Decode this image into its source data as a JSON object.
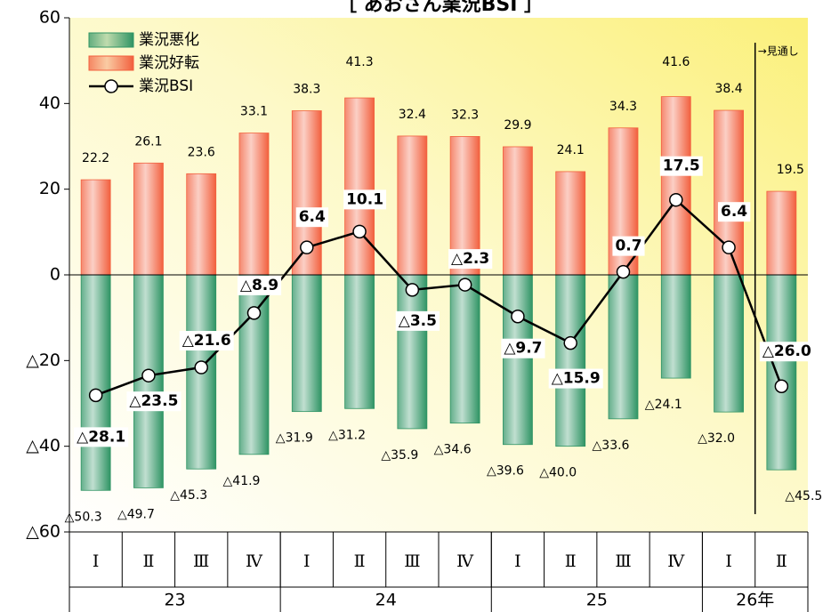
{
  "chart_data": {
    "type": "bar",
    "title": "［ あおさん業況BSI ］",
    "categories": [
      "Ⅰ",
      "Ⅱ",
      "Ⅲ",
      "Ⅳ",
      "Ⅰ",
      "Ⅱ",
      "Ⅲ",
      "Ⅳ",
      "Ⅰ",
      "Ⅱ",
      "Ⅲ",
      "Ⅳ",
      "Ⅰ",
      "Ⅱ"
    ],
    "category_groups": [
      {
        "label": "23",
        "count": 4
      },
      {
        "label": "24",
        "count": 4
      },
      {
        "label": "25",
        "count": 4
      },
      {
        "label": "26年",
        "count": 2
      }
    ],
    "series": [
      {
        "name": "業況悪化",
        "type": "bar",
        "color": "#2f9464",
        "values": [
          -50.3,
          -49.7,
          -45.3,
          -41.9,
          -31.9,
          -31.2,
          -35.9,
          -34.6,
          -39.6,
          -40.0,
          -33.6,
          -24.1,
          -32.0,
          -45.5
        ],
        "value_labels": [
          "△50.3",
          "△49.7",
          "△45.3",
          "△41.9",
          "△31.9",
          "△31.2",
          "△35.9",
          "△34.6",
          "△39.6",
          "△40.0",
          "△33.6",
          "△24.1",
          "△32.0",
          "△45.5"
        ]
      },
      {
        "name": "業況好転",
        "type": "bar",
        "color": "#f2603e",
        "values": [
          22.2,
          26.1,
          23.6,
          33.1,
          38.3,
          41.3,
          32.4,
          32.3,
          29.9,
          24.1,
          34.3,
          41.6,
          38.4,
          19.5
        ]
      },
      {
        "name": "業況BSI",
        "type": "line",
        "color": "#000000",
        "values": [
          -28.1,
          -23.5,
          -21.6,
          -8.9,
          6.4,
          10.1,
          -3.5,
          -2.3,
          -9.7,
          -15.9,
          0.7,
          17.5,
          6.4,
          -26.0
        ],
        "value_labels": [
          "△28.1",
          "△23.5",
          "△21.6",
          "△8.9",
          "6.4",
          "10.1",
          "△3.5",
          "△2.3",
          "△9.7",
          "△15.9",
          "0.7",
          "17.5",
          "6.4",
          "△26.0"
        ]
      }
    ],
    "ylim": [
      -60,
      60
    ],
    "yticks": [
      60,
      40,
      20,
      0,
      {
        "value": -20,
        "label": "△20"
      },
      {
        "value": -40,
        "label": "△40"
      },
      {
        "value": -60,
        "label": "△60"
      }
    ],
    "legend": "upper left",
    "annotations": [
      {
        "text": "→見通し",
        "after_index": 12
      }
    ]
  }
}
